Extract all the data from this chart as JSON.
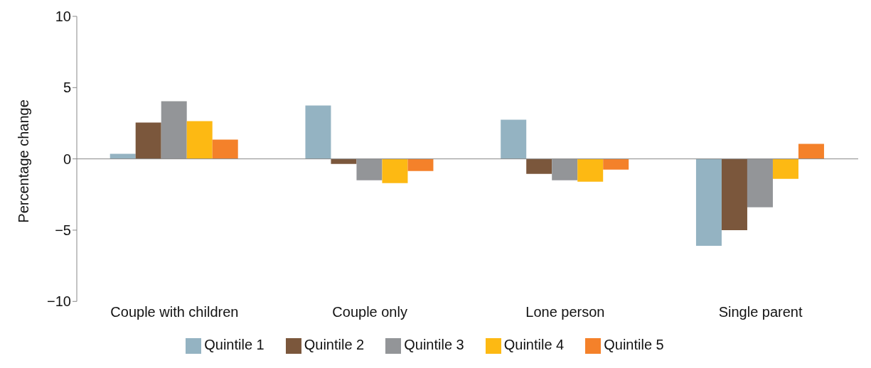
{
  "chart_data": {
    "type": "bar",
    "ylabel": "Percentage change",
    "categories": [
      "Couple with children",
      "Couple only",
      "Lone person",
      "Single parent"
    ],
    "series": [
      {
        "name": "Quintile 1",
        "color": "#94b3c2",
        "values": [
          0.35,
          3.75,
          2.75,
          -6.1
        ]
      },
      {
        "name": "Quintile 2",
        "color": "#7b573c",
        "values": [
          2.55,
          -0.35,
          -1.05,
          -5.0
        ]
      },
      {
        "name": "Quintile 3",
        "color": "#939598",
        "values": [
          4.05,
          -1.5,
          -1.5,
          -3.4
        ]
      },
      {
        "name": "Quintile 4",
        "color": "#fdb913",
        "values": [
          2.65,
          -1.7,
          -1.6,
          -1.4
        ]
      },
      {
        "name": "Quintile 5",
        "color": "#f4812a",
        "values": [
          1.35,
          -0.85,
          -0.75,
          1.05
        ]
      }
    ],
    "ylim": [
      -10,
      10
    ],
    "yticks": [
      {
        "value": -10,
        "label": "−10"
      },
      {
        "value": -5,
        "label": "−5"
      },
      0,
      5,
      10
    ],
    "legend": "bottom"
  }
}
